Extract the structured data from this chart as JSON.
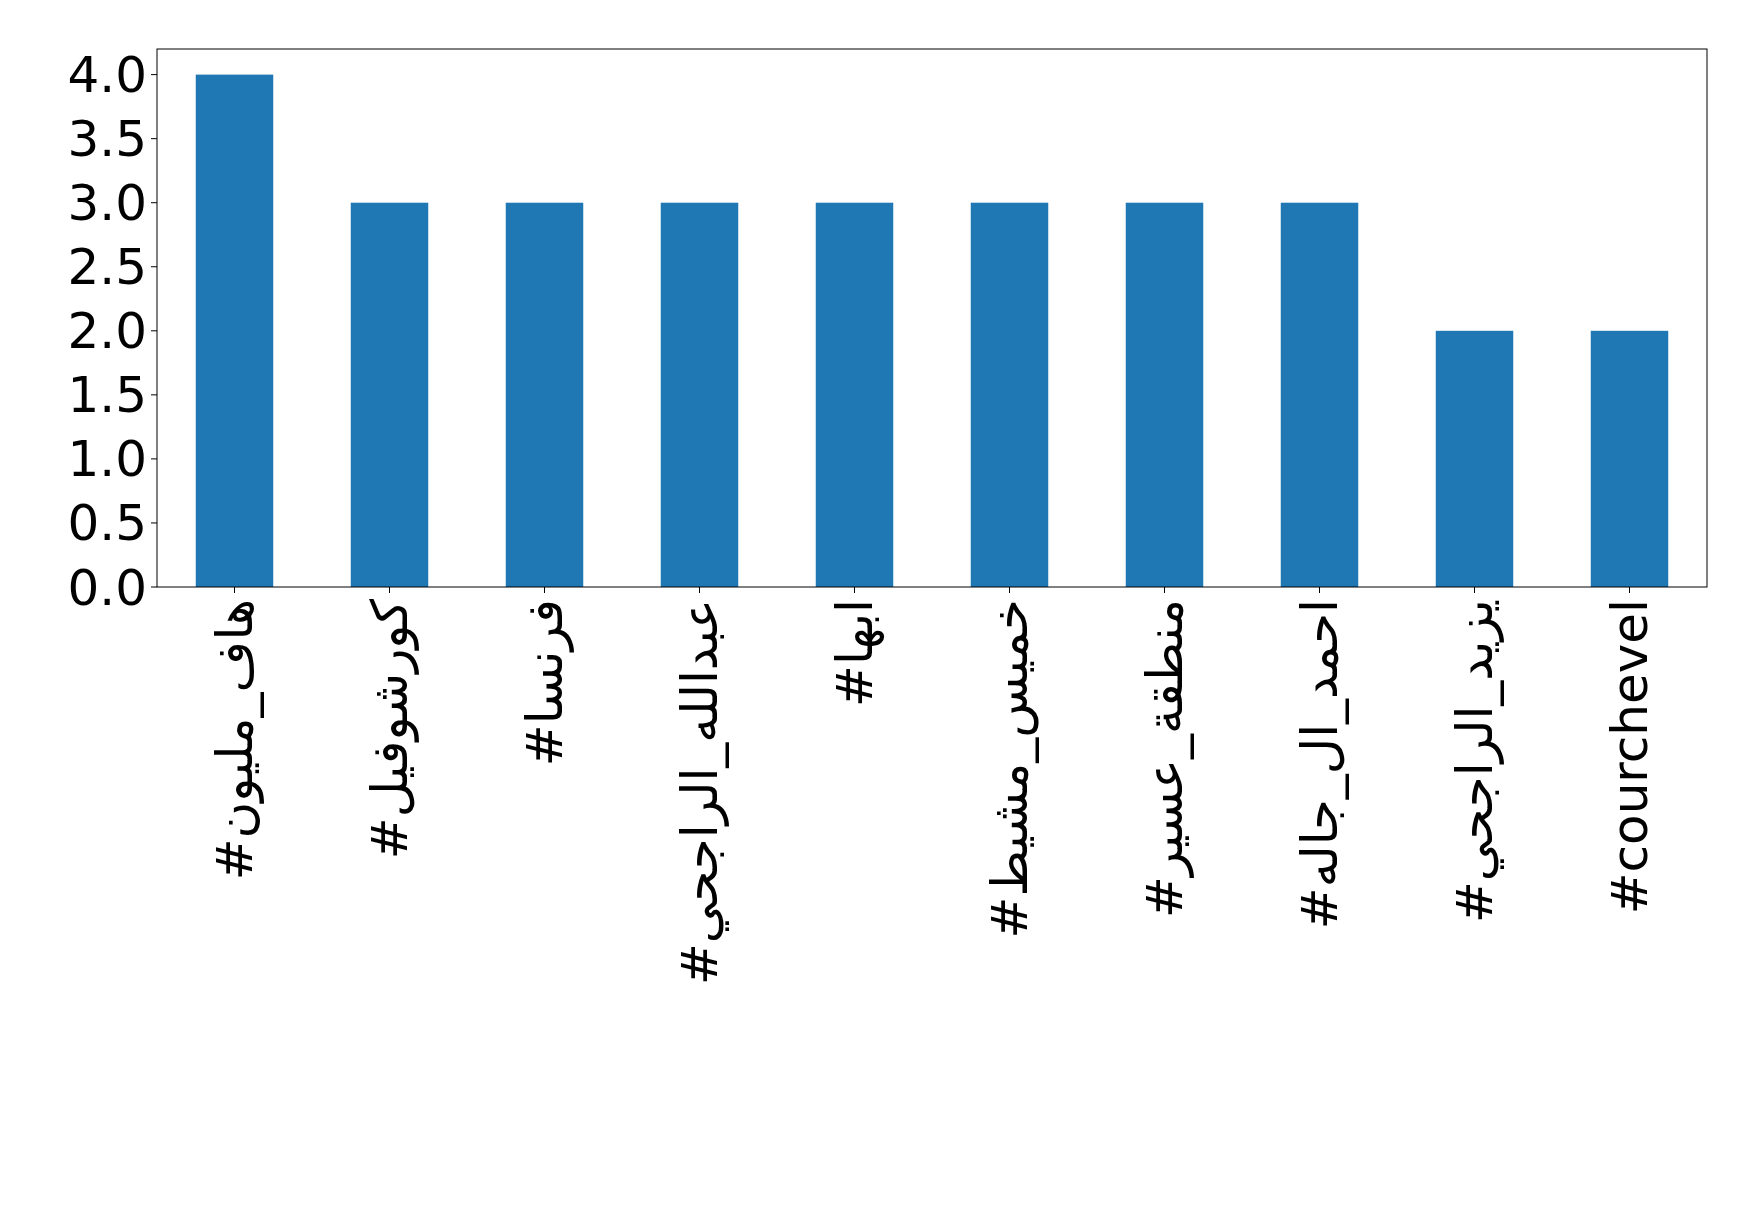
{
  "chart_data": {
    "type": "bar",
    "categories": [
      "#هاف_مليون",
      "#كورشوفيل",
      "#فرنسا",
      "#عبدالله_الراجحي",
      "#ابها",
      "#خميس_مشيط",
      "#منطقة_عسير",
      "#احمد_ال_جاله",
      "#يزيد_الراجحي",
      "#courchevel"
    ],
    "values": [
      4,
      3,
      3,
      3,
      3,
      3,
      3,
      3,
      2,
      2
    ],
    "color": "#1f77b4",
    "ylim": [
      0,
      4.2
    ],
    "yticks": [
      {
        "value": 0,
        "label": "0.0"
      },
      {
        "value": 0.5,
        "label": "0.5"
      },
      {
        "value": 1,
        "label": "1.0"
      },
      {
        "value": 1.5,
        "label": "1.5"
      },
      {
        "value": 2,
        "label": "2.0"
      },
      {
        "value": 2.5,
        "label": "2.5"
      },
      {
        "value": 3,
        "label": "3.0"
      },
      {
        "value": 3.5,
        "label": "3.5"
      },
      {
        "value": 4,
        "label": "4.0"
      }
    ],
    "grid": false
  }
}
